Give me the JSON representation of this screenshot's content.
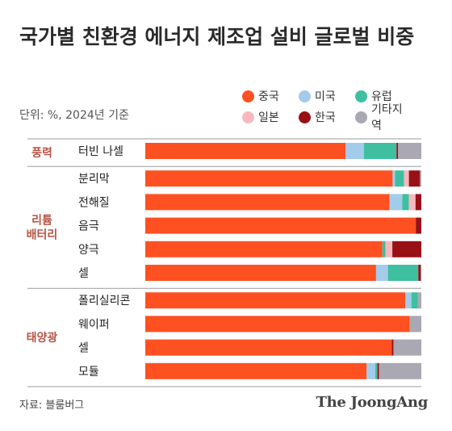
{
  "title": "국가별 친환경 에너지 제조업 설비 글로벌 비중",
  "subtitle": "단위: %, 2024년 기준",
  "source": "자료: 블룸버그",
  "brand": "The JoongAng",
  "colors": {
    "중국": "#fe5021",
    "미국": "#a3cbeb",
    "유럽": "#3ebf9f",
    "일본": "#f8b8be",
    "한국": "#991016",
    "기타지역": "#a9a8b3",
    "group_label": "#b65345",
    "divider": "#9a9a9a"
  },
  "legend": [
    {
      "name": "중국",
      "color": "#fe5021"
    },
    {
      "name": "미국",
      "color": "#a3cbeb"
    },
    {
      "name": "유럽",
      "color": "#3ebf9f"
    },
    {
      "name": "일본",
      "color": "#f8b8be"
    },
    {
      "name": "한국",
      "color": "#991016"
    },
    {
      "name": "기타지역",
      "color": "#a9a8b3"
    }
  ],
  "chart_data": {
    "type": "bar",
    "orientation": "horizontal",
    "stacked": true,
    "x_range": [
      0,
      100
    ],
    "series_names": [
      "중국",
      "미국",
      "유럽",
      "일본",
      "한국",
      "기타지역"
    ],
    "groups": [
      {
        "name": "풍력",
        "rows": [
          {
            "label": "터빈 나셀",
            "values": [
              72.6,
              6.6,
              11.8,
              0,
              0.6,
              8.4
            ]
          }
        ]
      },
      {
        "name": "리튬\n배터리",
        "rows": [
          {
            "label": "분리막",
            "values": [
              89.6,
              0.9,
              3.2,
              1.8,
              4.0,
              0.5
            ]
          },
          {
            "label": "전해질",
            "values": [
              88.5,
              4.6,
              2.4,
              2.4,
              2.1,
              0
            ]
          },
          {
            "label": "음극",
            "values": [
              98.0,
              0,
              0,
              0,
              2.0,
              0
            ]
          },
          {
            "label": "양극",
            "values": [
              85.9,
              0,
              1.1,
              2.5,
              10.5,
              0
            ]
          },
          {
            "label": "셀",
            "values": [
              83.6,
              4.3,
              11.0,
              0,
              0.9,
              0.2
            ]
          }
        ]
      },
      {
        "name": "태양광",
        "rows": [
          {
            "label": "폴리실리콘",
            "values": [
              94.2,
              2.2,
              2.3,
              0,
              0,
              1.3
            ]
          },
          {
            "label": "웨이퍼",
            "values": [
              95.8,
              0,
              0,
              0,
              0,
              4.2
            ]
          },
          {
            "label": "셀",
            "values": [
              89.3,
              0,
              0,
              0,
              0.6,
              10.1
            ]
          },
          {
            "label": "모듈",
            "values": [
              80.2,
              3.1,
              0.8,
              0,
              0.6,
              15.3
            ]
          }
        ]
      }
    ]
  }
}
